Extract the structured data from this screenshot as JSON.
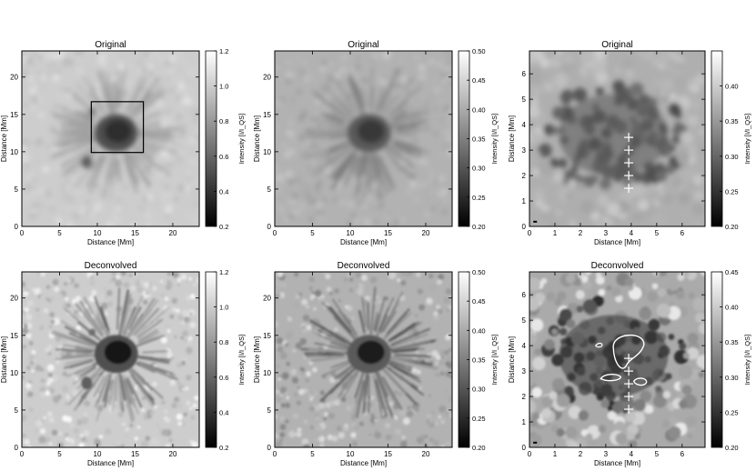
{
  "chart_data": [
    {
      "type": "heatmap",
      "title": "Original",
      "xlabel": "Distance [Mm]",
      "ylabel": "Distance [Mm]",
      "xlim": [
        0,
        23.5
      ],
      "ylim": [
        0,
        23.5
      ],
      "xticks": [
        "0",
        "5",
        "10",
        "15",
        "20"
      ],
      "yticks": [
        "0",
        "5",
        "10",
        "15",
        "20"
      ],
      "colorbar": {
        "label": "Intensity [I/I_QS]",
        "range": [
          0.2,
          1.2
        ],
        "ticks": [
          "0.2",
          "0.4",
          "0.6",
          "0.8",
          "1.0",
          "1.2"
        ]
      },
      "box": {
        "x": [
          9.2,
          16.1
        ],
        "y": [
          9.9,
          16.7
        ]
      }
    },
    {
      "type": "heatmap",
      "title": "Original",
      "xlabel": "Distance [Mm]",
      "ylabel": "Distance [Mm]",
      "xlim": [
        0,
        23.5
      ],
      "ylim": [
        0,
        23.5
      ],
      "xticks": [
        "0",
        "5",
        "10",
        "15",
        "20"
      ],
      "yticks": [
        "0",
        "5",
        "10",
        "15",
        "20"
      ],
      "colorbar": {
        "label": "Intensity [I/I_QS]",
        "range": [
          0.2,
          0.5
        ],
        "ticks": [
          "0.20",
          "0.25",
          "0.30",
          "0.35",
          "0.40",
          "0.45",
          "0.50"
        ]
      }
    },
    {
      "type": "heatmap",
      "title": "Original",
      "xlabel": "Distance [Mm]",
      "ylabel": "Distance [Mm]",
      "xlim": [
        0,
        6.9
      ],
      "ylim": [
        0,
        6.9
      ],
      "xticks": [
        "0",
        "1",
        "2",
        "3",
        "4",
        "5",
        "6"
      ],
      "yticks": [
        "0",
        "1",
        "2",
        "3",
        "4",
        "5",
        "6"
      ],
      "colorbar": {
        "label": "Intensity [I/I_QS]",
        "range": [
          0.2,
          0.45
        ],
        "ticks": [
          "0.20",
          "0.25",
          "0.30",
          "0.35",
          "0.40"
        ]
      },
      "markers": [
        [
          3.9,
          3.5
        ],
        [
          3.9,
          3.0
        ],
        [
          3.9,
          2.5
        ],
        [
          3.9,
          2.0
        ],
        [
          3.9,
          1.5
        ]
      ]
    },
    {
      "type": "heatmap",
      "title": "Deconvolved",
      "xlabel": "Distance [Mm]",
      "ylabel": "Distance [Mm]",
      "xlim": [
        0,
        23.5
      ],
      "ylim": [
        0,
        23.5
      ],
      "xticks": [
        "0",
        "5",
        "10",
        "15",
        "20"
      ],
      "yticks": [
        "0",
        "5",
        "10",
        "15",
        "20"
      ],
      "colorbar": {
        "label": "Intensity [I/I_QS]",
        "range": [
          0.2,
          1.2
        ],
        "ticks": [
          "0.2",
          "0.4",
          "0.6",
          "0.8",
          "1.0",
          "1.2"
        ]
      }
    },
    {
      "type": "heatmap",
      "title": "Deconvolved",
      "xlabel": "Distance [Mm]",
      "ylabel": "Distance [Mm]",
      "xlim": [
        0,
        23.5
      ],
      "ylim": [
        0,
        23.5
      ],
      "xticks": [
        "0",
        "5",
        "10",
        "15",
        "20"
      ],
      "yticks": [
        "0",
        "5",
        "10",
        "15",
        "20"
      ],
      "colorbar": {
        "label": "Intensity [I/I_QS]",
        "range": [
          0.2,
          0.5
        ],
        "ticks": [
          "0.20",
          "0.25",
          "0.30",
          "0.35",
          "0.40",
          "0.45",
          "0.50"
        ]
      }
    },
    {
      "type": "heatmap",
      "title": "Deconvolved",
      "xlabel": "Distance [Mm]",
      "ylabel": "Distance [Mm]",
      "xlim": [
        0,
        6.9
      ],
      "ylim": [
        0,
        6.9
      ],
      "xticks": [
        "0",
        "1",
        "2",
        "3",
        "4",
        "5",
        "6"
      ],
      "yticks": [
        "0",
        "1",
        "2",
        "3",
        "4",
        "5",
        "6"
      ],
      "colorbar": {
        "label": "Intensity [I/I_QS]",
        "range": [
          0.2,
          0.45
        ],
        "ticks": [
          "0.20",
          "0.25",
          "0.30",
          "0.35",
          "0.40",
          "0.45"
        ]
      },
      "markers": [
        [
          3.9,
          3.5
        ],
        [
          3.9,
          3.0
        ],
        [
          3.9,
          2.5
        ],
        [
          3.9,
          2.0
        ],
        [
          3.9,
          1.5
        ]
      ],
      "contour_color": "#ffffff"
    }
  ]
}
